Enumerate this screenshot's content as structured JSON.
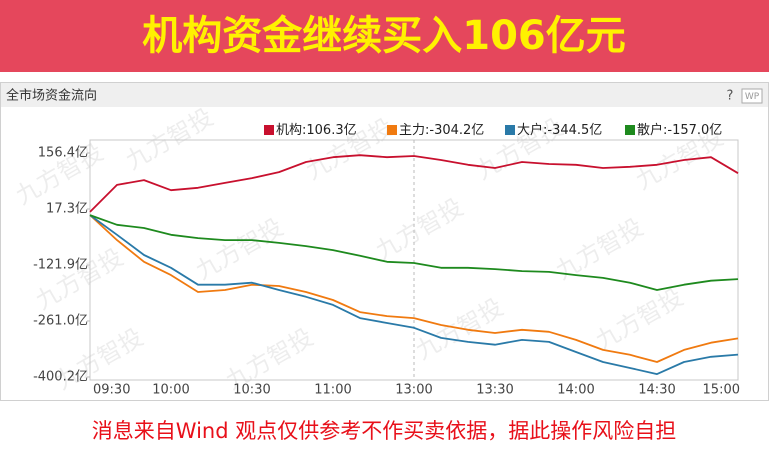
{
  "headline": "机构资金继续买入106亿元",
  "toolbar": [
    "?",
    "WP"
  ],
  "watermark": "九方智投",
  "footer": "消息来自Wind  观点仅供参考不作买卖依据，据此操作风险自担",
  "chart_data": {
    "type": "line",
    "title": "全市场资金流向",
    "categories": [
      "09:30",
      null,
      null,
      "10:00",
      null,
      null,
      "10:30",
      null,
      null,
      "11:00",
      null,
      null,
      "13:00",
      null,
      null,
      "13:30",
      null,
      null,
      "14:00",
      null,
      null,
      "14:30",
      null,
      null,
      "15:00"
    ],
    "series": [
      {
        "name": "机构:106.3亿",
        "color": "#c8102e",
        "values": [
          10,
          77,
          89,
          64,
          70,
          82,
          94,
          109,
          134,
          146,
          151,
          146,
          149,
          139,
          127,
          119,
          134,
          129,
          127,
          119,
          122,
          127,
          139,
          146,
          106.3
        ]
      },
      {
        "name": "主力:-304.2亿",
        "color": "#f07a10",
        "values": [
          2,
          -60,
          -114,
          -147,
          -189,
          -184,
          -171,
          -174,
          -189,
          -209,
          -239,
          -249,
          -254,
          -271,
          -283,
          -291,
          -283,
          -288,
          -308,
          -333,
          -345,
          -363,
          -333,
          -315,
          -304.2
        ]
      },
      {
        "name": "大户:-344.5亿",
        "color": "#2a7aa8",
        "values": [
          2,
          -47,
          -97,
          -129,
          -171,
          -171,
          -166,
          -184,
          -201,
          -221,
          -254,
          -266,
          -278,
          -303,
          -313,
          -320,
          -308,
          -313,
          -338,
          -363,
          -378,
          -393,
          -363,
          -350,
          -344.5
        ]
      },
      {
        "name": "散户:-157.0亿",
        "color": "#1e8a1e",
        "values": [
          2,
          -22,
          -30,
          -47,
          -55,
          -60,
          -60,
          -67,
          -75,
          -85,
          -99,
          -114,
          -117,
          -129,
          -129,
          -132,
          -137,
          -139,
          -147,
          -154,
          -166,
          -184,
          -171,
          -161,
          -157.0
        ]
      }
    ],
    "ylim": [
      -407.7,
      188.7
    ],
    "yticks": [
      {
        "value": 156.4,
        "label": "156.4亿"
      },
      {
        "value": 17.3,
        "label": "17.3亿"
      },
      {
        "value": -121.9,
        "label": "-121.9亿"
      },
      {
        "value": -261.0,
        "label": "-261.0亿"
      },
      {
        "value": -400.2,
        "label": "-400.2亿"
      }
    ],
    "grid": false
  }
}
